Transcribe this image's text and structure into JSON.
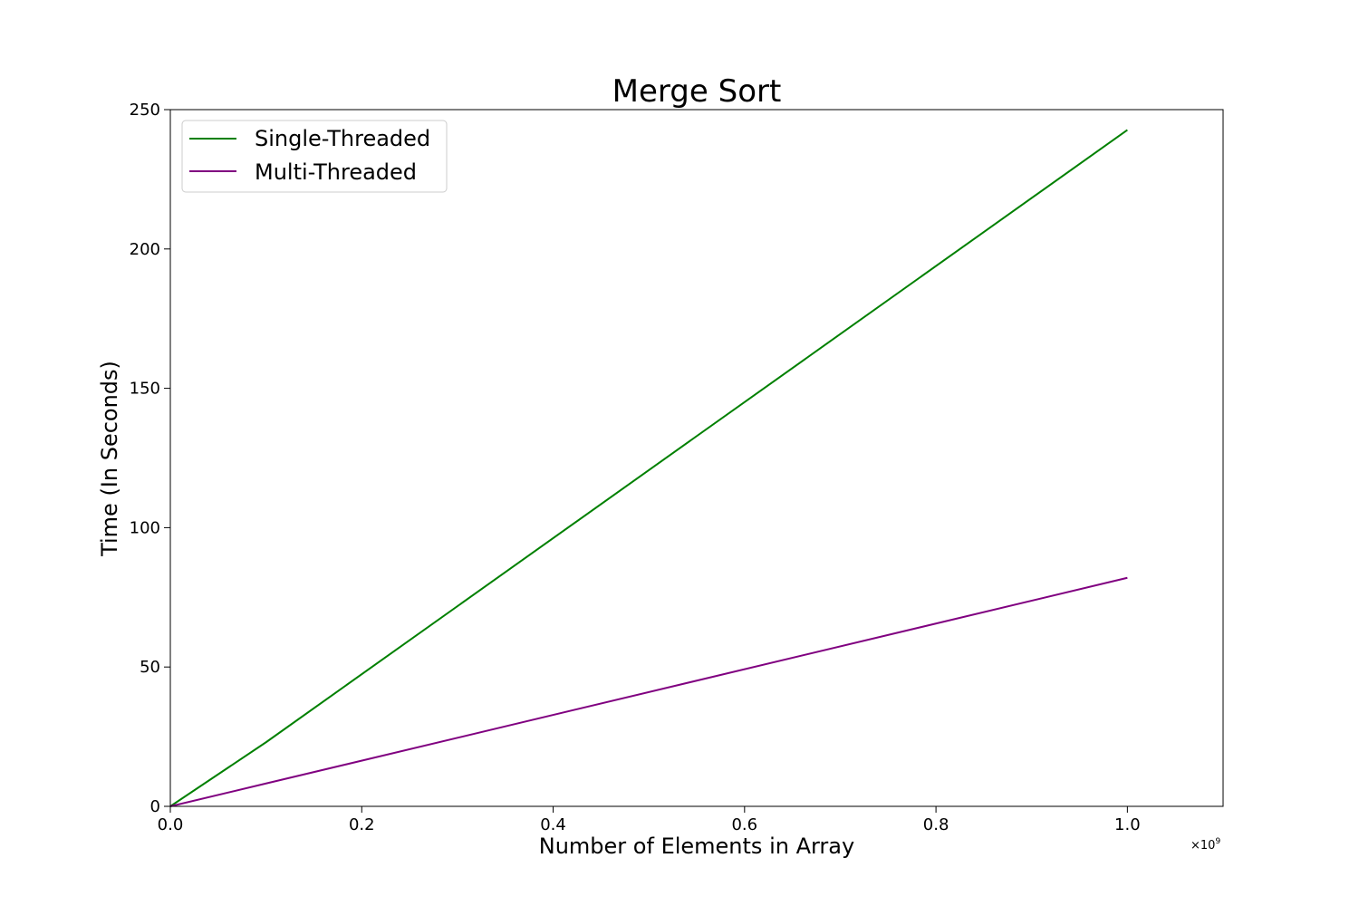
{
  "chart_data": {
    "type": "line",
    "title": "Merge Sort",
    "xlabel": "Number of Elements in Array",
    "ylabel": "Time (In Seconds)",
    "x_multiplier": "×10",
    "x_multiplier_exponent": "9",
    "xlim": [
      0.0,
      1.1
    ],
    "ylim": [
      0,
      250
    ],
    "x_ticks": [
      0.0,
      0.2,
      0.4,
      0.6,
      0.8,
      1.0
    ],
    "x_tick_labels": [
      "0.0",
      "0.2",
      "0.4",
      "0.6",
      "0.8",
      "1.0"
    ],
    "y_ticks": [
      0,
      50,
      100,
      150,
      200,
      250
    ],
    "y_tick_labels": [
      "0",
      "50",
      "100",
      "150",
      "200",
      "250"
    ],
    "grid": false,
    "legend_position": "top-left",
    "series": [
      {
        "name": "Single-Threaded",
        "color": "#008000",
        "x": [
          0.0,
          0.1,
          1.0
        ],
        "y": [
          0,
          23,
          242.7
        ]
      },
      {
        "name": "Multi-Threaded",
        "color": "#800080",
        "x": [
          0.0,
          0.1,
          1.0
        ],
        "y": [
          0,
          8.2,
          82
        ]
      }
    ]
  }
}
